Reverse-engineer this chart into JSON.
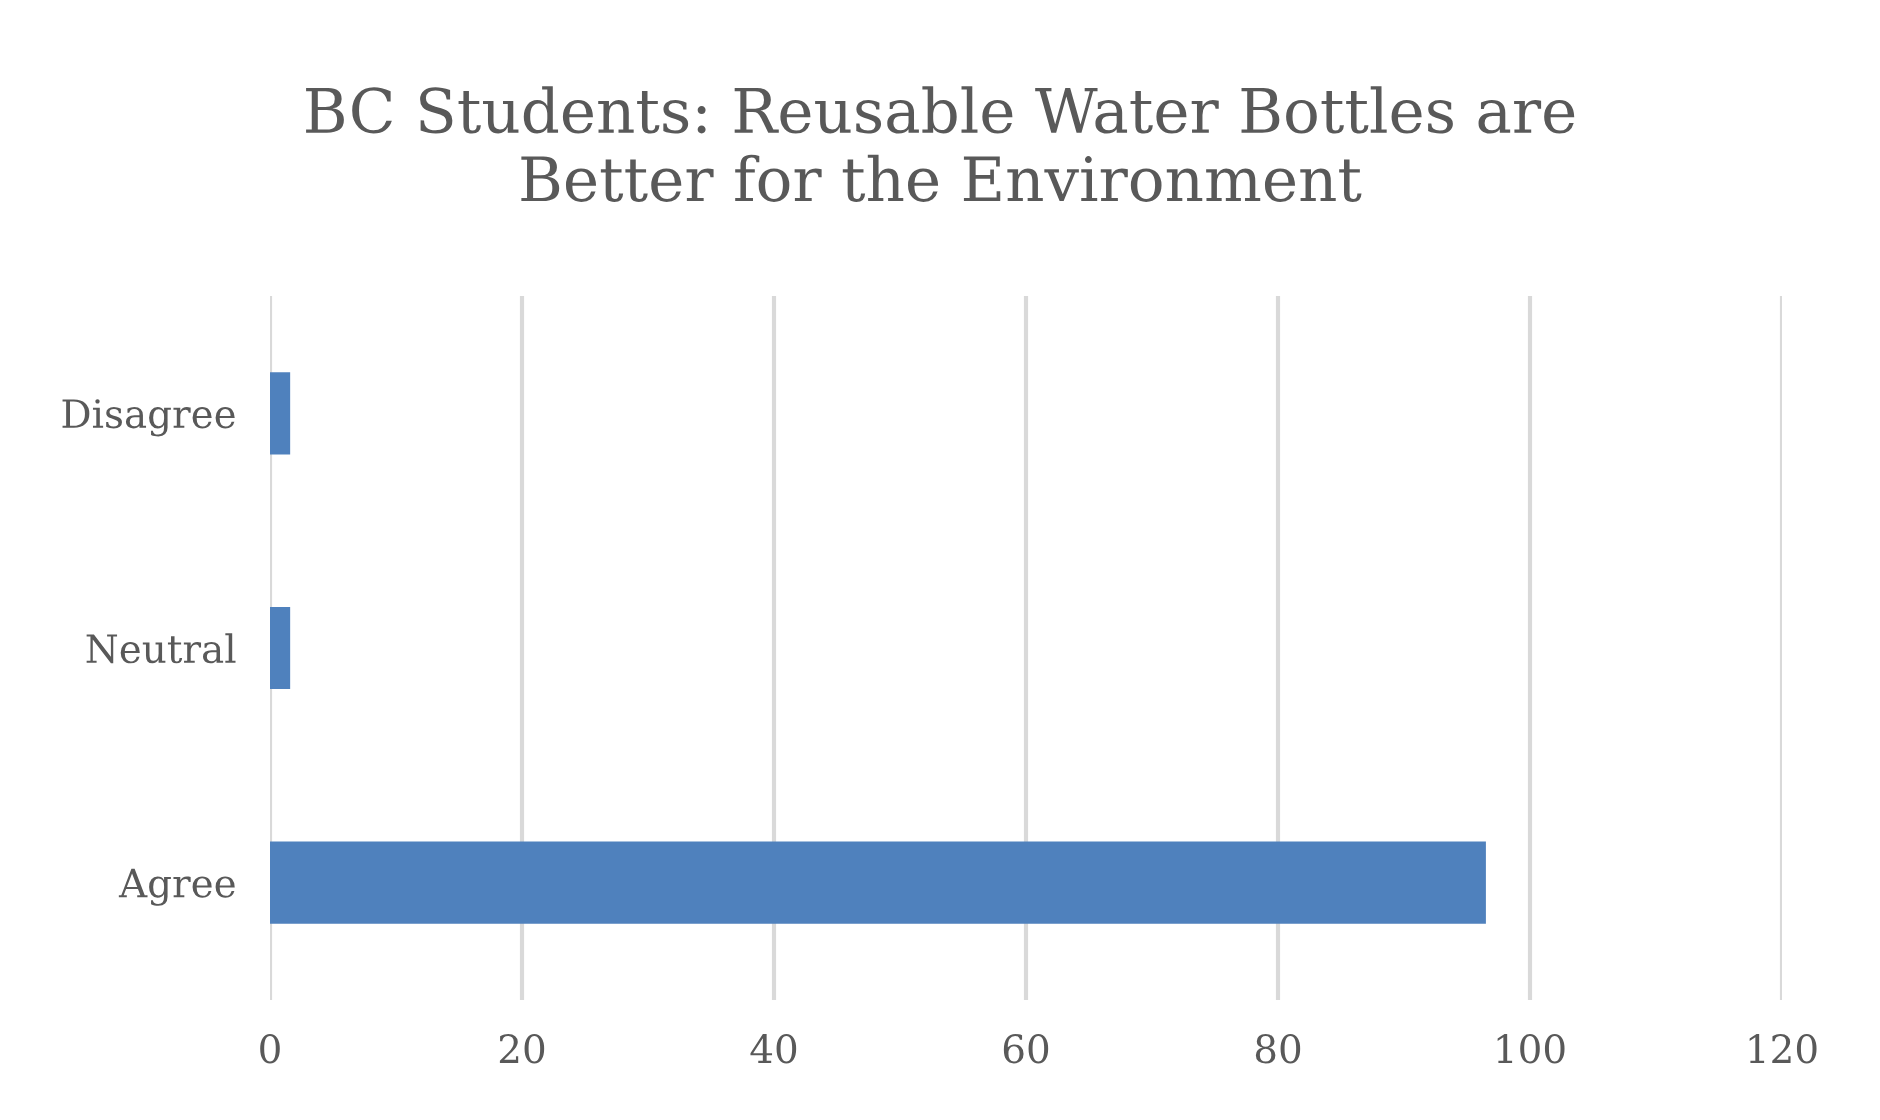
{
  "chart_data": {
    "type": "bar",
    "orientation": "horizontal",
    "title": "BC Students: Reusable Water Bottles are\nBetter for the Environment",
    "categories": [
      "Disagree",
      "Neutral",
      "Agree"
    ],
    "values": [
      1.6,
      1.6,
      96.5
    ],
    "color": "#4f81bd",
    "xlim": [
      0,
      120
    ],
    "xticks": [
      0,
      20,
      40,
      60,
      80,
      100,
      120
    ],
    "grid": "x"
  }
}
